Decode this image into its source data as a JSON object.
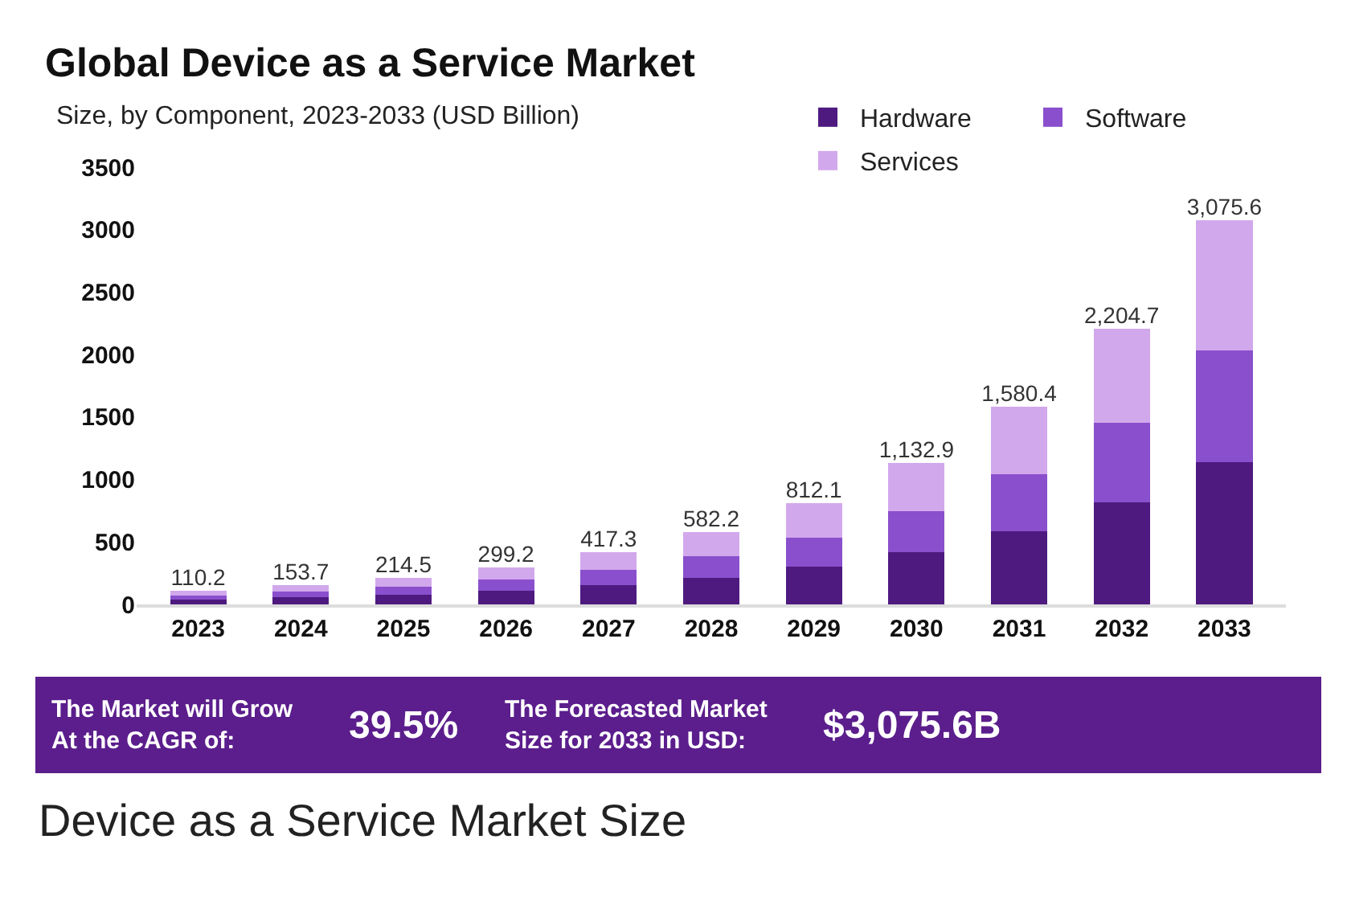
{
  "chart_data": {
    "type": "bar",
    "stacked": true,
    "title": "Global Device as a Service Market",
    "subtitle": "Size, by Component, 2023-2033 (USD Billion)",
    "categories": [
      "2023",
      "2024",
      "2025",
      "2026",
      "2027",
      "2028",
      "2029",
      "2030",
      "2031",
      "2032",
      "2033"
    ],
    "series": [
      {
        "name": "Hardware",
        "color": "#4e1a80",
        "values": [
          41,
          57,
          79,
          111,
          154,
          215,
          300,
          419,
          585,
          816,
          1138
        ]
      },
      {
        "name": "Software",
        "color": "#8a4fcc",
        "values": [
          32,
          45,
          62,
          87,
          121,
          169,
          236,
          329,
          458,
          639,
          892
        ]
      },
      {
        "name": "Services",
        "color": "#d2a8ec",
        "values": [
          37.2,
          51.7,
          73.5,
          101.2,
          142.3,
          198.2,
          276.1,
          384.9,
          537.4,
          749.7,
          1045.6
        ]
      }
    ],
    "totals": [
      "110.2",
      "153.7",
      "214.5",
      "299.2",
      "417.3",
      "582.2",
      "812.1",
      "1,132.9",
      "1,580.4",
      "2,204.7",
      "3,075.6"
    ],
    "ylim": [
      0,
      3500
    ],
    "yticks": [
      0,
      500,
      1000,
      1500,
      2000,
      2500,
      3000,
      3500
    ],
    "legend": "top right",
    "annotations": [
      "The Market will Grow\nAt the CAGR of:",
      "39.5%",
      "The Forecasted Market\nSize for 2033 in USD:",
      "$3,075.6B",
      "Device as a Service Market Size"
    ]
  }
}
